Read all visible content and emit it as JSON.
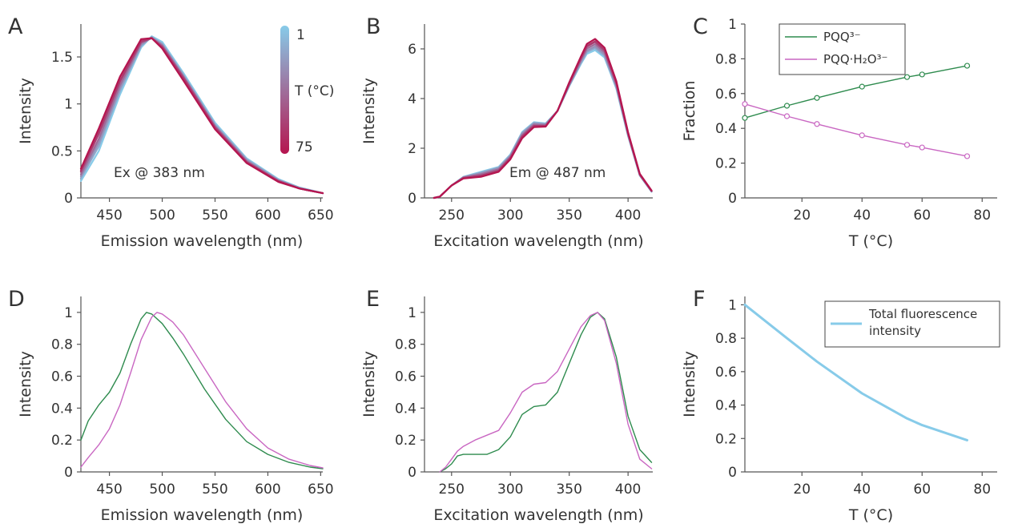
{
  "panel_letters": [
    "A",
    "B",
    "C",
    "D",
    "E",
    "F"
  ],
  "temperature_colorbar": {
    "label": "T (°C)",
    "top_label": "1",
    "bottom_label": "75",
    "top_color": "#87cbe9",
    "bottom_color": "#b5154f"
  },
  "colors": {
    "pqq3": "#2e8b4e",
    "pqq_h2o3": "#c967c2",
    "total": "#87cbe9"
  },
  "chart_data": [
    {
      "panel": "A",
      "type": "line",
      "xlabel": "Emission wavelength  (nm)",
      "ylabel": "Intensity",
      "xlim": [
        423,
        652
      ],
      "ylim": [
        0,
        1.85
      ],
      "xticks": [
        450,
        500,
        550,
        600,
        650
      ],
      "xtick_labels": [
        "450",
        "500",
        "550",
        "600",
        "650"
      ],
      "yticks": [
        0,
        0.5,
        1,
        1.5
      ],
      "ytick_labels": [
        "0",
        "0.5",
        "1",
        "1.5"
      ],
      "annotation": "Ex @ 383 nm",
      "series_by_temperature": true,
      "series": [
        {
          "temperature": 1,
          "x": [
            423,
            440,
            460,
            480,
            490,
            500,
            520,
            550,
            580,
            610,
            630,
            652
          ],
          "y": [
            0.18,
            0.5,
            1.1,
            1.6,
            1.72,
            1.66,
            1.33,
            0.8,
            0.42,
            0.2,
            0.11,
            0.05
          ]
        },
        {
          "temperature": 15,
          "x": [
            423,
            440,
            460,
            480,
            490,
            500,
            520,
            550,
            580,
            610,
            630,
            652
          ],
          "y": [
            0.21,
            0.55,
            1.14,
            1.62,
            1.71,
            1.64,
            1.31,
            0.78,
            0.41,
            0.19,
            0.11,
            0.05
          ]
        },
        {
          "temperature": 25,
          "x": [
            423,
            440,
            460,
            480,
            490,
            500,
            520,
            550,
            580,
            610,
            630,
            652
          ],
          "y": [
            0.23,
            0.59,
            1.17,
            1.63,
            1.71,
            1.63,
            1.3,
            0.77,
            0.4,
            0.19,
            0.1,
            0.05
          ]
        },
        {
          "temperature": 40,
          "x": [
            423,
            440,
            460,
            480,
            490,
            500,
            520,
            550,
            580,
            610,
            630,
            652
          ],
          "y": [
            0.25,
            0.63,
            1.2,
            1.65,
            1.7,
            1.62,
            1.29,
            0.76,
            0.39,
            0.18,
            0.1,
            0.05
          ]
        },
        {
          "temperature": 55,
          "x": [
            423,
            440,
            460,
            480,
            490,
            500,
            520,
            550,
            580,
            610,
            630,
            652
          ],
          "y": [
            0.28,
            0.68,
            1.24,
            1.66,
            1.7,
            1.61,
            1.28,
            0.75,
            0.38,
            0.18,
            0.1,
            0.05
          ]
        },
        {
          "temperature": 60,
          "x": [
            423,
            440,
            460,
            480,
            490,
            500,
            520,
            550,
            580,
            610,
            630,
            652
          ],
          "y": [
            0.29,
            0.7,
            1.25,
            1.67,
            1.7,
            1.6,
            1.27,
            0.74,
            0.38,
            0.18,
            0.1,
            0.05
          ]
        },
        {
          "temperature": 75,
          "x": [
            423,
            440,
            460,
            480,
            490,
            500,
            520,
            550,
            580,
            610,
            630,
            652
          ],
          "y": [
            0.31,
            0.74,
            1.29,
            1.69,
            1.7,
            1.59,
            1.25,
            0.73,
            0.37,
            0.17,
            0.1,
            0.05
          ]
        }
      ]
    },
    {
      "panel": "B",
      "type": "line",
      "xlabel": "Excitation wavelength  (nm)",
      "ylabel": "Intensity",
      "xlim": [
        227,
        421
      ],
      "ylim": [
        0,
        7
      ],
      "xticks": [
        250,
        300,
        350,
        400
      ],
      "xtick_labels": [
        "250",
        "300",
        "350",
        "400"
      ],
      "yticks": [
        0,
        2,
        4,
        6
      ],
      "ytick_labels": [
        "0",
        "2",
        "4",
        "6"
      ],
      "annotation": "Em @ 487 nm",
      "series_by_temperature": true,
      "series": [
        {
          "temperature": 1,
          "x": [
            235,
            240,
            250,
            260,
            275,
            290,
            300,
            310,
            320,
            330,
            340,
            350,
            360,
            365,
            372,
            380,
            390,
            400,
            410,
            420
          ],
          "y": [
            0,
            0.05,
            0.5,
            0.85,
            1.05,
            1.25,
            1.75,
            2.65,
            3.05,
            3.0,
            3.5,
            4.5,
            5.4,
            5.8,
            5.95,
            5.65,
            4.4,
            2.5,
            0.9,
            0.25
          ]
        },
        {
          "temperature": 15,
          "x": [
            235,
            240,
            250,
            260,
            275,
            290,
            300,
            310,
            320,
            330,
            340,
            350,
            360,
            365,
            372,
            380,
            390,
            400,
            410,
            420
          ],
          "y": [
            0,
            0.05,
            0.5,
            0.84,
            1.02,
            1.22,
            1.72,
            2.62,
            3.02,
            2.98,
            3.5,
            4.52,
            5.45,
            5.87,
            6.03,
            5.72,
            4.45,
            2.52,
            0.91,
            0.26
          ]
        },
        {
          "temperature": 25,
          "x": [
            235,
            240,
            250,
            260,
            275,
            290,
            300,
            310,
            320,
            330,
            340,
            350,
            360,
            365,
            372,
            380,
            390,
            400,
            410,
            420
          ],
          "y": [
            0,
            0.05,
            0.5,
            0.83,
            0.99,
            1.19,
            1.69,
            2.58,
            2.99,
            2.96,
            3.5,
            4.54,
            5.5,
            5.93,
            6.1,
            5.78,
            4.5,
            2.54,
            0.92,
            0.26
          ]
        },
        {
          "temperature": 40,
          "x": [
            235,
            240,
            250,
            260,
            275,
            290,
            300,
            310,
            320,
            330,
            340,
            350,
            360,
            365,
            372,
            380,
            390,
            400,
            410,
            420
          ],
          "y": [
            0,
            0.05,
            0.5,
            0.82,
            0.95,
            1.15,
            1.65,
            2.53,
            2.95,
            2.93,
            3.5,
            4.57,
            5.56,
            6.01,
            6.19,
            5.86,
            4.56,
            2.57,
            0.93,
            0.27
          ]
        },
        {
          "temperature": 55,
          "x": [
            235,
            240,
            250,
            260,
            275,
            290,
            300,
            310,
            320,
            330,
            340,
            350,
            360,
            365,
            372,
            380,
            390,
            400,
            410,
            420
          ],
          "y": [
            0,
            0.05,
            0.5,
            0.8,
            0.9,
            1.1,
            1.61,
            2.48,
            2.9,
            2.9,
            3.5,
            4.6,
            5.62,
            6.09,
            6.28,
            5.94,
            4.62,
            2.6,
            0.95,
            0.28
          ]
        },
        {
          "temperature": 60,
          "x": [
            235,
            240,
            250,
            260,
            275,
            290,
            300,
            310,
            320,
            330,
            340,
            350,
            360,
            365,
            372,
            380,
            390,
            400,
            410,
            420
          ],
          "y": [
            0,
            0.05,
            0.5,
            0.8,
            0.89,
            1.09,
            1.6,
            2.46,
            2.89,
            2.89,
            3.5,
            4.61,
            5.64,
            6.12,
            6.31,
            5.97,
            4.64,
            2.61,
            0.95,
            0.28
          ]
        },
        {
          "temperature": 75,
          "x": [
            235,
            240,
            250,
            260,
            275,
            290,
            300,
            310,
            320,
            330,
            340,
            350,
            360,
            365,
            372,
            380,
            390,
            400,
            410,
            420
          ],
          "y": [
            0,
            0.05,
            0.5,
            0.78,
            0.85,
            1.05,
            1.55,
            2.4,
            2.85,
            2.87,
            3.5,
            4.65,
            5.7,
            6.2,
            6.4,
            6.05,
            4.7,
            2.65,
            0.97,
            0.3
          ]
        }
      ]
    },
    {
      "panel": "C",
      "type": "line",
      "xlabel": "T (°C)",
      "ylabel": "Fraction",
      "xlim": [
        1,
        85
      ],
      "ylim": [
        0,
        1
      ],
      "xticks": [
        20,
        40,
        60,
        80
      ],
      "xtick_labels": [
        "20",
        "40",
        "60",
        "80"
      ],
      "yticks": [
        0,
        0.2,
        0.4,
        0.6,
        0.8,
        1
      ],
      "ytick_labels": [
        "0",
        "0.2",
        "0.4",
        "0.6",
        "0.8",
        "1"
      ],
      "legend_position": "top-left",
      "series": [
        {
          "name": "PQQ³⁻",
          "color_key": "pqq3",
          "markers": true,
          "x": [
            1,
            15,
            25,
            40,
            55,
            60,
            75
          ],
          "y": [
            0.46,
            0.53,
            0.575,
            0.64,
            0.695,
            0.71,
            0.76
          ]
        },
        {
          "name": "PQQ·H₂O³⁻",
          "color_key": "pqq_h2o3",
          "markers": true,
          "x": [
            1,
            15,
            25,
            40,
            55,
            60,
            75
          ],
          "y": [
            0.54,
            0.47,
            0.425,
            0.36,
            0.305,
            0.29,
            0.24
          ]
        }
      ]
    },
    {
      "panel": "D",
      "type": "line",
      "xlabel": "Emission wavelength  (nm)",
      "ylabel": "Intensity",
      "xlim": [
        423,
        652
      ],
      "ylim": [
        0,
        1.1
      ],
      "xticks": [
        450,
        500,
        550,
        600,
        650
      ],
      "xtick_labels": [
        "450",
        "500",
        "550",
        "600",
        "650"
      ],
      "yticks": [
        0,
        0.2,
        0.4,
        0.6,
        0.8,
        1
      ],
      "ytick_labels": [
        "0",
        "0.2",
        "0.4",
        "0.6",
        "0.8",
        "1"
      ],
      "series": [
        {
          "color_key": "pqq3",
          "x": [
            423,
            430,
            440,
            450,
            460,
            470,
            480,
            485,
            490,
            500,
            510,
            520,
            540,
            560,
            580,
            600,
            620,
            640,
            652
          ],
          "y": [
            0.2,
            0.32,
            0.42,
            0.5,
            0.62,
            0.8,
            0.96,
            1.0,
            0.99,
            0.93,
            0.84,
            0.74,
            0.52,
            0.33,
            0.19,
            0.11,
            0.06,
            0.03,
            0.02
          ]
        },
        {
          "color_key": "pqq_h2o3",
          "x": [
            423,
            430,
            440,
            450,
            460,
            470,
            480,
            490,
            495,
            500,
            510,
            520,
            540,
            560,
            580,
            600,
            620,
            640,
            652
          ],
          "y": [
            0.03,
            0.09,
            0.17,
            0.27,
            0.42,
            0.62,
            0.83,
            0.97,
            1.0,
            0.99,
            0.94,
            0.86,
            0.65,
            0.44,
            0.27,
            0.15,
            0.08,
            0.04,
            0.025
          ]
        }
      ]
    },
    {
      "panel": "E",
      "type": "line",
      "xlabel": "Excitation wavelength  (nm)",
      "ylabel": "Intensity",
      "xlim": [
        227,
        421
      ],
      "ylim": [
        0,
        1.1
      ],
      "xticks": [
        250,
        300,
        350,
        400
      ],
      "xtick_labels": [
        "250",
        "300",
        "350",
        "400"
      ],
      "yticks": [
        0,
        0.2,
        0.4,
        0.6,
        0.8,
        1
      ],
      "ytick_labels": [
        "0",
        "0.2",
        "0.4",
        "0.6",
        "0.8",
        "1"
      ],
      "series": [
        {
          "color_key": "pqq3",
          "x": [
            240,
            245,
            250,
            255,
            260,
            270,
            280,
            290,
            300,
            310,
            320,
            330,
            340,
            350,
            360,
            368,
            374,
            380,
            390,
            400,
            410,
            420
          ],
          "y": [
            0,
            0.02,
            0.05,
            0.1,
            0.11,
            0.11,
            0.11,
            0.14,
            0.22,
            0.36,
            0.41,
            0.42,
            0.5,
            0.68,
            0.86,
            0.97,
            1.0,
            0.96,
            0.72,
            0.35,
            0.14,
            0.06
          ]
        },
        {
          "color_key": "pqq_h2o3",
          "x": [
            240,
            245,
            250,
            255,
            260,
            270,
            280,
            290,
            300,
            310,
            320,
            330,
            340,
            350,
            360,
            368,
            374,
            380,
            390,
            400,
            410,
            420
          ],
          "y": [
            0,
            0.03,
            0.08,
            0.13,
            0.16,
            0.2,
            0.23,
            0.26,
            0.37,
            0.5,
            0.55,
            0.56,
            0.63,
            0.77,
            0.91,
            0.98,
            1.0,
            0.95,
            0.68,
            0.3,
            0.08,
            0.02
          ]
        }
      ]
    },
    {
      "panel": "F",
      "type": "line",
      "xlabel": "T  (°C)",
      "ylabel": "Intensity",
      "xlim": [
        1,
        85
      ],
      "ylim": [
        0,
        1.05
      ],
      "xticks": [
        20,
        40,
        60,
        80
      ],
      "xtick_labels": [
        "20",
        "40",
        "60",
        "80"
      ],
      "yticks": [
        0,
        0.2,
        0.4,
        0.6,
        0.8,
        1
      ],
      "ytick_labels": [
        "0",
        "0.2",
        "0.4",
        "0.6",
        "0.8",
        "1"
      ],
      "legend_position": "top-right",
      "series": [
        {
          "name": "Total fluorescence intensity",
          "legend_lines": [
            "Total fluorescence",
            "intensity"
          ],
          "color_key": "total",
          "x": [
            1,
            15,
            25,
            40,
            55,
            60,
            75
          ],
          "y": [
            1.0,
            0.8,
            0.66,
            0.47,
            0.32,
            0.28,
            0.19
          ]
        }
      ]
    }
  ]
}
